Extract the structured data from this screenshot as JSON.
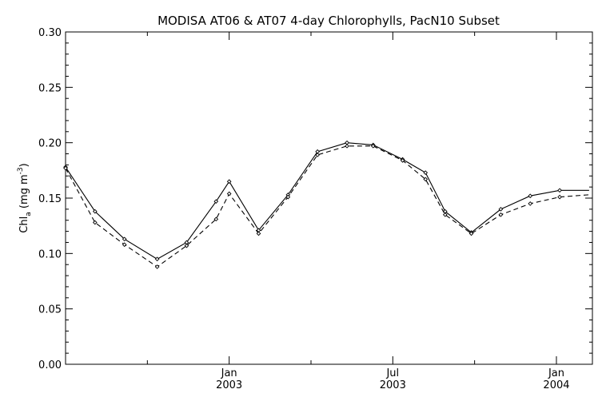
{
  "chart_data": {
    "type": "line",
    "title": "MODISA AT06 & AT07 4-day Chlorophylls, PacN10 Subset",
    "ylabel": "Chl",
    "ylabel_sub": "a",
    "ylabel_unit_pre": " (mg m",
    "ylabel_unit_sup": "-3",
    "ylabel_unit_post": ")",
    "xlabel": "",
    "ylim": [
      0.0,
      0.3
    ],
    "xlim": [
      2002.5,
      2004.11
    ],
    "yticks": [
      0.0,
      0.05,
      0.1,
      0.15,
      0.2,
      0.25,
      0.3
    ],
    "ytick_labels": [
      "0.00",
      "0.05",
      "0.10",
      "0.15",
      "0.20",
      "0.25",
      "0.30"
    ],
    "xticks_major": [
      {
        "x": 2003.0,
        "label1": "Jan",
        "label2": "2003"
      },
      {
        "x": 2003.5,
        "label1": "Jul",
        "label2": "2003"
      },
      {
        "x": 2004.0,
        "label1": "Jan",
        "label2": "2004"
      }
    ],
    "xticks_minor": [
      2002.75,
      2003.25,
      2003.75
    ],
    "grid": false,
    "series": [
      {
        "style": "solid",
        "x": [
          2002.5,
          2002.59,
          2002.68,
          2002.78,
          2002.87,
          2002.96,
          2003.0,
          2003.09,
          2003.18,
          2003.27,
          2003.36,
          2003.44,
          2003.53,
          2003.6,
          2003.66,
          2003.74,
          2003.83,
          2003.92,
          2004.01,
          2004.1
        ],
        "values": [
          0.178,
          0.138,
          0.113,
          0.095,
          0.11,
          0.147,
          0.165,
          0.121,
          0.153,
          0.192,
          0.2,
          0.198,
          0.185,
          0.173,
          0.138,
          0.119,
          0.14,
          0.152,
          0.157,
          0.157
        ]
      },
      {
        "style": "dashed",
        "x": [
          2002.5,
          2002.59,
          2002.68,
          2002.78,
          2002.87,
          2002.96,
          2003.0,
          2003.09,
          2003.18,
          2003.27,
          2003.36,
          2003.44,
          2003.53,
          2003.6,
          2003.66,
          2003.74,
          2003.83,
          2003.92,
          2004.01,
          2004.1
        ],
        "values": [
          0.177,
          0.128,
          0.108,
          0.088,
          0.107,
          0.131,
          0.154,
          0.118,
          0.151,
          0.189,
          0.197,
          0.197,
          0.184,
          0.167,
          0.135,
          0.118,
          0.135,
          0.145,
          0.151,
          0.153
        ]
      }
    ]
  }
}
